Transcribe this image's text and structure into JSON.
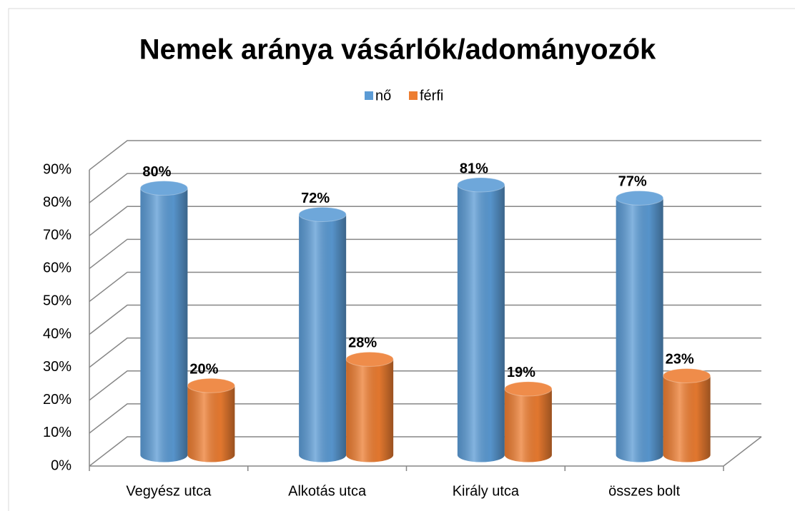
{
  "chart_data": {
    "type": "bar3d",
    "title": "Nemek aránya vásárlók/adományozók",
    "categories": [
      "Vegyész utca",
      "Alkotás utca",
      "Király utca",
      "összes bolt"
    ],
    "series": [
      {
        "name": "nő",
        "color": "#5b9bd5",
        "values": [
          80,
          72,
          81,
          77
        ],
        "value_labels": [
          "80%",
          "72%",
          "81%",
          "77%"
        ]
      },
      {
        "name": "férfi",
        "color": "#ed7d31",
        "values": [
          20,
          28,
          19,
          23
        ],
        "value_labels": [
          "20%",
          "28%",
          "19%",
          "23%"
        ]
      }
    ],
    "ylim": [
      0,
      90
    ],
    "yticks": [
      {
        "value": 0,
        "label": "0%"
      },
      {
        "value": 10,
        "label": "10%"
      },
      {
        "value": 20,
        "label": "20%"
      },
      {
        "value": 30,
        "label": "30%"
      },
      {
        "value": 40,
        "label": "40%"
      },
      {
        "value": 50,
        "label": "50%"
      },
      {
        "value": 60,
        "label": "60%"
      },
      {
        "value": 70,
        "label": "70%"
      },
      {
        "value": 80,
        "label": "80%"
      },
      {
        "value": 90,
        "label": "90%"
      }
    ],
    "grid": true,
    "legend": "top"
  }
}
